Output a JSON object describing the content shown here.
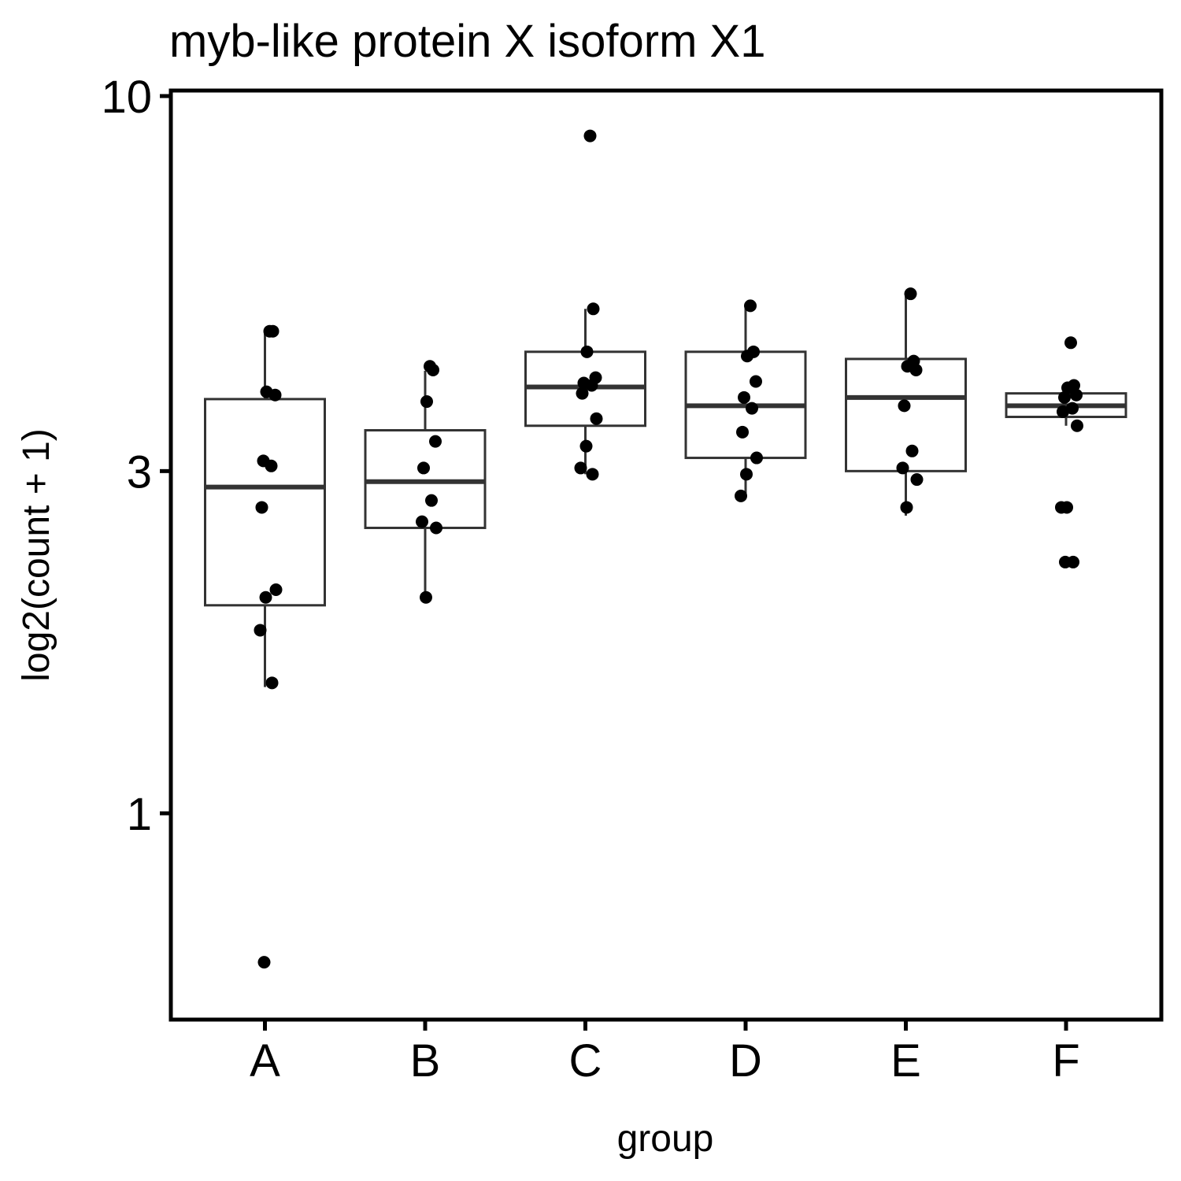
{
  "chart_data": {
    "type": "boxplot",
    "title": "myb-like protein X isoform X1",
    "xlabel": "group",
    "ylabel": "log2(count + 1)",
    "y_scale": "log",
    "ylim": [
      0.55,
      10
    ],
    "y_ticks": [
      1,
      3,
      10
    ],
    "categories": [
      "A",
      "B",
      "C",
      "D",
      "E",
      "F"
    ],
    "boxes": [
      {
        "group": "A",
        "whisker_low": 1.5,
        "q1": 1.95,
        "median": 2.85,
        "q3": 3.78,
        "whisker_high": 4.7
      },
      {
        "group": "B",
        "whisker_low": 1.97,
        "q1": 2.5,
        "median": 2.9,
        "q3": 3.42,
        "whisker_high": 4.14
      },
      {
        "group": "C",
        "whisker_low": 2.97,
        "q1": 3.47,
        "median": 3.93,
        "q3": 4.4,
        "whisker_high": 5.05
      },
      {
        "group": "D",
        "whisker_low": 2.77,
        "q1": 3.13,
        "median": 3.7,
        "q3": 4.4,
        "whisker_high": 5.1
      },
      {
        "group": "E",
        "whisker_low": 2.6,
        "q1": 3.0,
        "median": 3.8,
        "q3": 4.3,
        "whisker_high": 5.3
      },
      {
        "group": "F",
        "whisker_low": 3.47,
        "q1": 3.57,
        "median": 3.7,
        "q3": 3.85,
        "whisker_high": 3.85
      }
    ],
    "points": [
      {
        "group": "A",
        "y": [
          4.7,
          4.7,
          3.87,
          3.83,
          3.1,
          3.05,
          2.67,
          2.05,
          2.0,
          1.8,
          1.52,
          0.62
        ]
      },
      {
        "group": "B",
        "y": [
          4.2,
          4.15,
          3.75,
          3.3,
          3.03,
          2.73,
          2.55,
          2.5,
          2.0
        ]
      },
      {
        "group": "C",
        "y": [
          8.8,
          5.05,
          4.4,
          4.05,
          3.98,
          3.95,
          3.85,
          3.55,
          3.25,
          3.03,
          2.97
        ]
      },
      {
        "group": "D",
        "y": [
          5.1,
          4.4,
          4.34,
          4.0,
          3.8,
          3.67,
          3.4,
          3.13,
          2.97,
          2.77
        ]
      },
      {
        "group": "E",
        "y": [
          5.3,
          4.27,
          4.2,
          4.15,
          3.7,
          3.2,
          3.03,
          2.92,
          2.67
        ]
      },
      {
        "group": "F",
        "y": [
          4.53,
          3.95,
          3.92,
          3.83,
          3.8,
          3.67,
          3.63,
          3.47,
          2.67,
          2.67,
          2.24,
          2.24
        ]
      }
    ]
  },
  "colors": {
    "box_stroke": "#333333",
    "point": "#000000",
    "panel_border": "#000000",
    "background": "#ffffff"
  }
}
